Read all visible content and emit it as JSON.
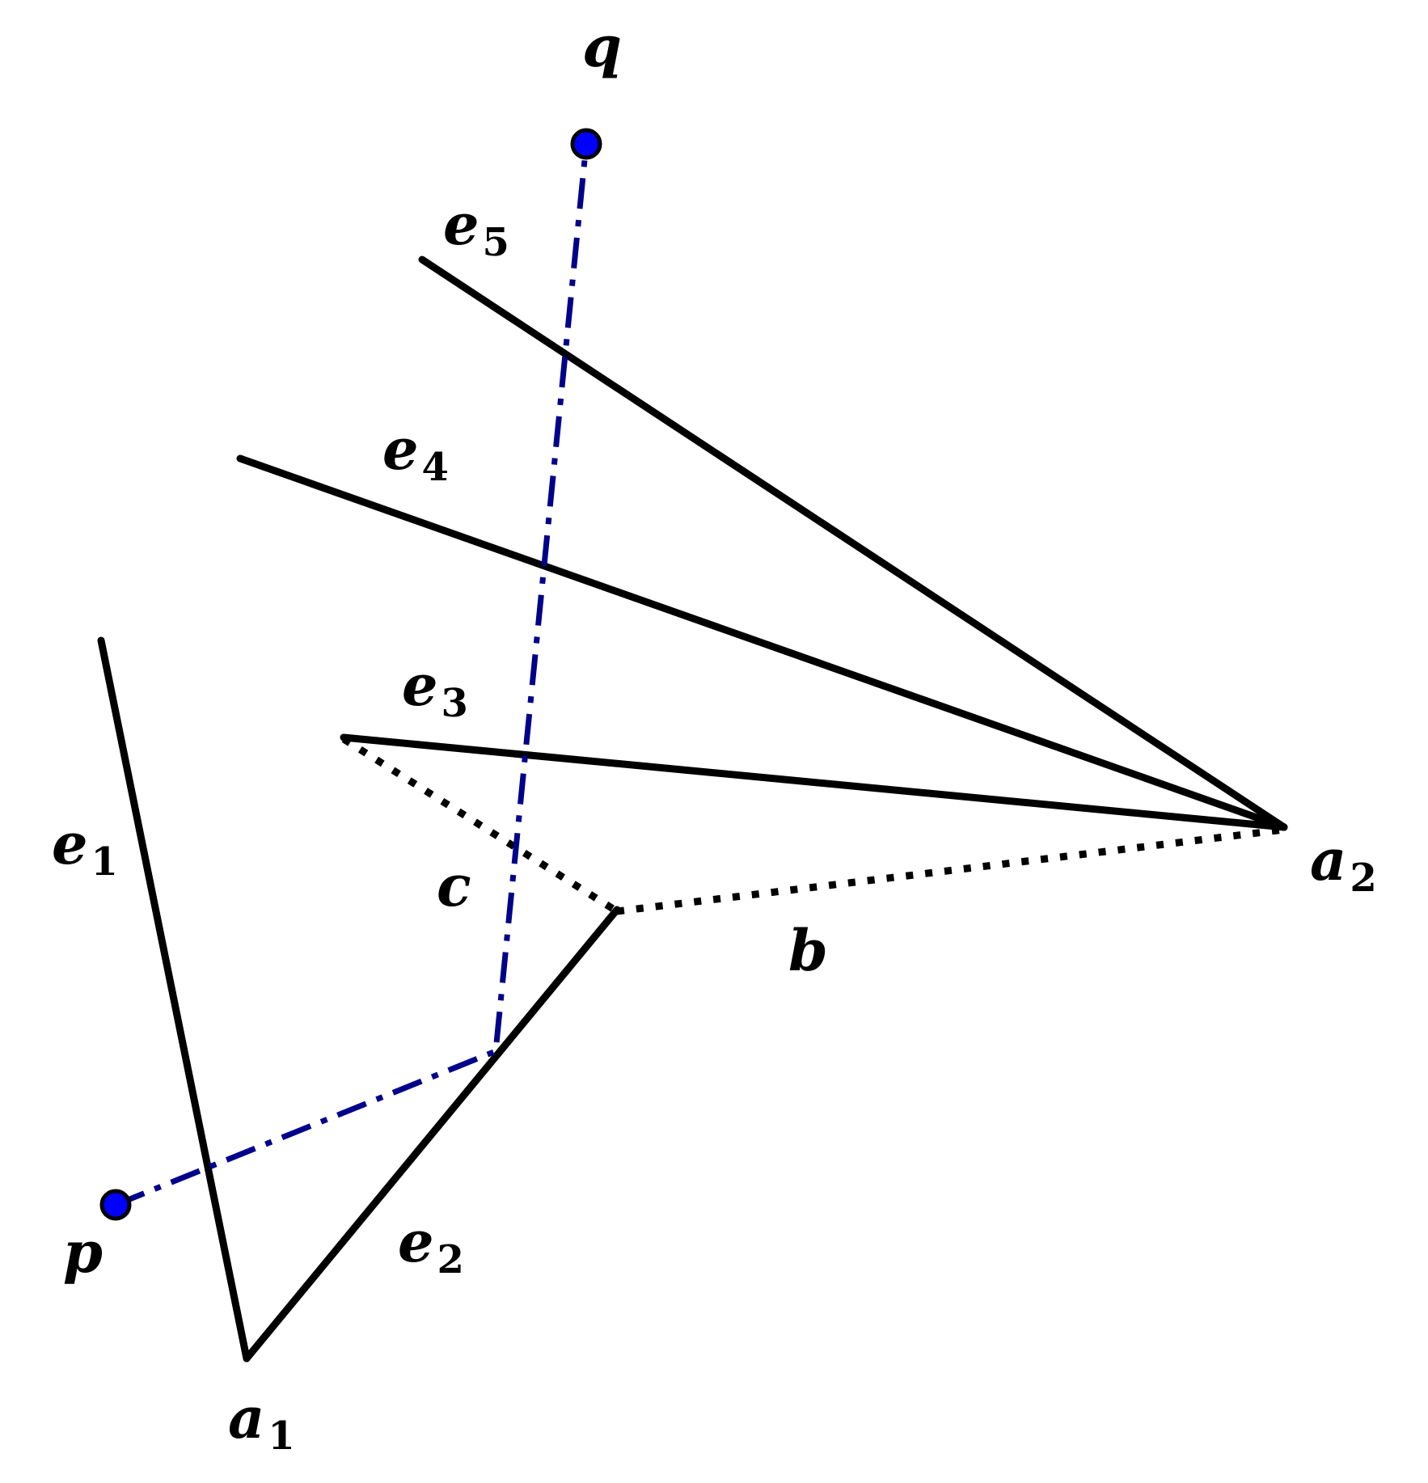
{
  "colors": {
    "edge": "#000000",
    "path": "#00008b",
    "point_fill": "#0000ff"
  },
  "labels": {
    "q": {
      "base": "q",
      "sub": ""
    },
    "p": {
      "base": "p",
      "sub": ""
    },
    "e1": {
      "base": "e",
      "sub": "1"
    },
    "e2": {
      "base": "e",
      "sub": "2"
    },
    "e3": {
      "base": "e",
      "sub": "3"
    },
    "e4": {
      "base": "e",
      "sub": "4"
    },
    "e5": {
      "base": "e",
      "sub": "5"
    },
    "a1": {
      "base": "a",
      "sub": "1"
    },
    "a2": {
      "base": "a",
      "sub": "2"
    },
    "b": {
      "base": "b",
      "sub": ""
    },
    "c": {
      "base": "c",
      "sub": ""
    }
  }
}
